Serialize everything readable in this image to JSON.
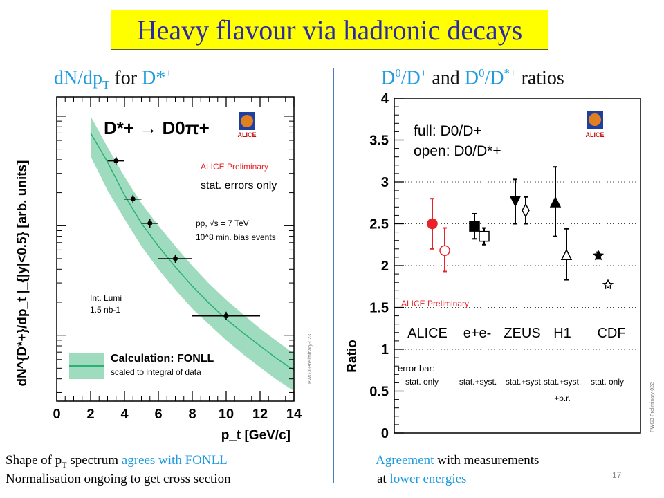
{
  "title": "Heavy flavour via hadronic decays",
  "left_heading": {
    "prefix": "dN/dp",
    "sub": "T",
    "mid": " for ",
    "particle": "D*",
    "sup": "+"
  },
  "right_heading": {
    "a": "D",
    "a_sup": "0",
    "b": "/D",
    "b_sup": "+",
    "and": " and ",
    "c": "D",
    "c_sup": "0",
    "d": "/D",
    "d_sup": "*+",
    "end": " ratios"
  },
  "left_caption": {
    "line1_pre": "Shape of p",
    "line1_sub": "T",
    "line1_mid": " spectrum ",
    "line1_highlight": "agrees with FONLL",
    "line2": "Normalisation ongoing to get cross section"
  },
  "right_caption": {
    "line1_highlight": "Agreement",
    "line1_rest": " with measurements",
    "line2_pre": "at ",
    "line2_highlight": "lower energies"
  },
  "slide_number": "17",
  "colors": {
    "title_bg": "#ffff00",
    "title_text": "#2a2aa8",
    "highlight": "#1c9be0",
    "band": "#9fdcbf",
    "band_line": "#2bb075",
    "alice_red": "#e8232a"
  },
  "chart_data": [
    {
      "type": "scatter",
      "ylabel": "dN^{D*+}/dp_t |_{|y|<0.5} [arb. units]",
      "xlabel": "p_t [GeV/c]",
      "xlim": [
        0,
        14
      ],
      "log_y": true,
      "ytick_labels": [],
      "xtick_labels": [
        "0",
        "2",
        "4",
        "6",
        "8",
        "10",
        "12",
        "14"
      ],
      "decay": "D*+ → D0π+",
      "annotations": {
        "preliminary": "ALICE Preliminary",
        "stat": "stat. errors only",
        "energy": "pp, √s = 7 TeV",
        "events": "10^8 min. bias events",
        "lumi_line1": "Int. Lumi",
        "lumi_line2": "1.5 nb-1",
        "legend_main": "Calculation: FONLL",
        "legend_sub": "scaled to integral of data",
        "tag": "PWG3-Preliminary-023",
        "logo": "ALICE"
      },
      "points": [
        {
          "x": 3.5,
          "xerr": 0.5,
          "y": 3.9e-06
        },
        {
          "x": 4.5,
          "xerr": 0.5,
          "y": 1.75e-06
        },
        {
          "x": 5.5,
          "xerr": 0.5,
          "y": 1.05e-06
        },
        {
          "x": 7.0,
          "xerr": 1.0,
          "y": 5e-07
        },
        {
          "x": 10.0,
          "xerr": 2.0,
          "y": 1.5e-07
        }
      ],
      "band": {
        "x": [
          2,
          3,
          4,
          5,
          6,
          7,
          8,
          9,
          10,
          11,
          12,
          13,
          14
        ],
        "center": [
          7e-06,
          3.8e-06,
          1.9e-06,
          1.05e-06,
          6.5e-07,
          4.2e-07,
          2.8e-07,
          1.95e-07,
          1.4e-07,
          1.05e-07,
          8e-08,
          6.1e-08,
          4.8e-08
        ],
        "upper": [
          1e-05,
          5.2e-06,
          2.8e-06,
          1.6e-06,
          1e-06,
          6.5e-07,
          4.3e-07,
          2.95e-07,
          2.1e-07,
          1.55e-07,
          1.15e-07,
          8.8e-08,
          6.8e-08
        ],
        "lower": [
          4.3e-06,
          2.1e-06,
          1.15e-06,
          6.5e-07,
          4e-07,
          2.6e-07,
          1.75e-07,
          1.25e-07,
          9e-08,
          6.7e-08,
          5.1e-08,
          3.9e-08,
          3.1e-08
        ]
      }
    },
    {
      "type": "scatter",
      "ylabel": "Ratio",
      "ylim": [
        0,
        4
      ],
      "ytick_labels": [
        "0",
        "0.5",
        "1",
        "1.5",
        "2",
        "2.5",
        "3",
        "3.5",
        "4"
      ],
      "annotations": {
        "full": "full: D0/D+",
        "open": "open: D0/D*+",
        "preliminary": "ALICE Preliminary",
        "tag": "PWG3-Preliminary-022",
        "logo": "ALICE",
        "errbar_title": "error bar:"
      },
      "groups": [
        {
          "label": "ALICE",
          "err": "stat. only",
          "err2": ""
        },
        {
          "label": "e+e-",
          "err": "stat.+syst.",
          "err2": ""
        },
        {
          "label": "ZEUS",
          "err": "stat.+syst.",
          "err2": ""
        },
        {
          "label": "H1",
          "err": "stat.+syst.",
          "err2": "+b.r."
        },
        {
          "label": "CDF",
          "err": "stat. only",
          "err2": ""
        }
      ],
      "points": [
        {
          "group": "ALICE",
          "ratio": "D0/D+",
          "y": 2.5,
          "lo": 2.2,
          "hi": 2.8,
          "marker": "circle",
          "filled": true,
          "color": "#e8232a"
        },
        {
          "group": "ALICE",
          "ratio": "D0/D*+",
          "y": 2.18,
          "lo": 1.93,
          "hi": 2.45,
          "marker": "circle",
          "filled": false,
          "color": "#e8232a"
        },
        {
          "group": "e+e-",
          "ratio": "D0/D+",
          "y": 2.47,
          "lo": 2.32,
          "hi": 2.62,
          "marker": "square",
          "filled": true,
          "color": "#000000"
        },
        {
          "group": "e+e-",
          "ratio": "D0/D*+",
          "y": 2.35,
          "lo": 2.25,
          "hi": 2.45,
          "marker": "square",
          "filled": false,
          "color": "#000000"
        },
        {
          "group": "ZEUS",
          "ratio": "D0/D+",
          "y": 2.77,
          "lo": 2.5,
          "hi": 3.03,
          "marker": "triangle-down",
          "filled": true,
          "color": "#000000"
        },
        {
          "group": "ZEUS",
          "ratio": "D0/D*+",
          "y": 2.66,
          "lo": 2.5,
          "hi": 2.82,
          "marker": "diamond",
          "filled": false,
          "color": "#000000"
        },
        {
          "group": "H1",
          "ratio": "D0/D+",
          "y": 2.76,
          "lo": 2.35,
          "hi": 3.18,
          "marker": "triangle-up",
          "filled": true,
          "color": "#000000"
        },
        {
          "group": "H1",
          "ratio": "D0/D*+",
          "y": 2.13,
          "lo": 1.83,
          "hi": 2.44,
          "marker": "triangle-up",
          "filled": false,
          "color": "#000000"
        },
        {
          "group": "CDF",
          "ratio": "D0/D+",
          "y": 2.12,
          "lo": 2.08,
          "hi": 2.16,
          "marker": "star",
          "filled": true,
          "color": "#000000"
        },
        {
          "group": "CDF",
          "ratio": "D0/D*+",
          "y": 1.77,
          "lo": 1.74,
          "hi": 1.8,
          "marker": "star",
          "filled": false,
          "color": "#000000"
        }
      ]
    }
  ]
}
